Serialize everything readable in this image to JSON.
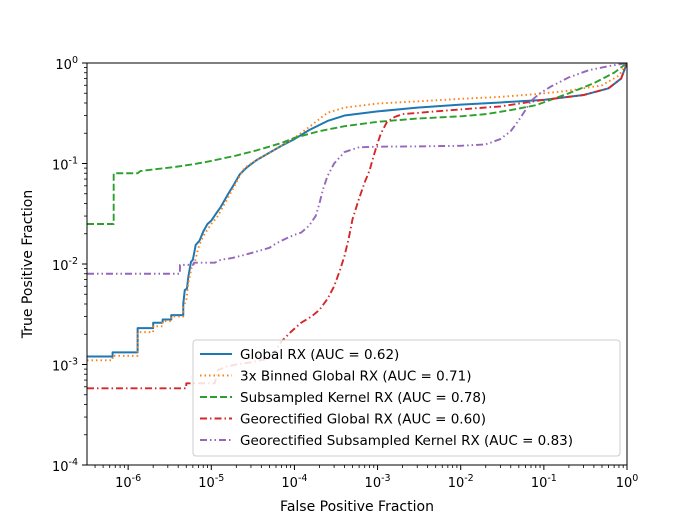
{
  "chart_data": {
    "type": "line",
    "title": "",
    "xlabel": "False Positive Fraction",
    "ylabel": "True Positive Fraction",
    "xscale": "log",
    "yscale": "log",
    "xlim": [
      3.2e-07,
      1
    ],
    "ylim": [
      0.0001,
      1
    ],
    "x_ticks": [
      {
        "exp": "-6",
        "value": 1e-06
      },
      {
        "exp": "-5",
        "value": 1e-05
      },
      {
        "exp": "-4",
        "value": 0.0001
      },
      {
        "exp": "-3",
        "value": 0.001
      },
      {
        "exp": "-2",
        "value": 0.01
      },
      {
        "exp": "-1",
        "value": 0.1
      },
      {
        "exp": "0",
        "value": 1
      }
    ],
    "y_ticks": [
      {
        "exp": "-4",
        "value": 0.0001
      },
      {
        "exp": "-3",
        "value": 0.001
      },
      {
        "exp": "-2",
        "value": 0.01
      },
      {
        "exp": "-1",
        "value": 0.1
      },
      {
        "exp": "0",
        "value": 1
      }
    ],
    "tick_base": "10",
    "legend_position": "lower-right",
    "series": [
      {
        "name": "Global RX (AUC = 0.62)",
        "color": "#1f77b4",
        "dash": "solid",
        "points": [
          [
            3.2e-07,
            0.0012
          ],
          [
            6.5e-07,
            0.0012
          ],
          [
            6.5e-07,
            0.00132
          ],
          [
            1.3e-06,
            0.00132
          ],
          [
            1.3e-06,
            0.0023
          ],
          [
            2e-06,
            0.0023
          ],
          [
            2e-06,
            0.0026
          ],
          [
            2.6e-06,
            0.0026
          ],
          [
            2.6e-06,
            0.0028
          ],
          [
            3.3e-06,
            0.0028
          ],
          [
            3.3e-06,
            0.0031
          ],
          [
            4.6e-06,
            0.0031
          ],
          [
            4.6e-06,
            0.004
          ],
          [
            4.8e-06,
            0.0055
          ],
          [
            5.1e-06,
            0.0057
          ],
          [
            5.3e-06,
            0.0075
          ],
          [
            5.7e-06,
            0.0105
          ],
          [
            6e-06,
            0.011
          ],
          [
            6.5e-06,
            0.0155
          ],
          [
            7.2e-06,
            0.017
          ],
          [
            8e-06,
            0.021
          ],
          [
            9e-06,
            0.025
          ],
          [
            1e-05,
            0.027
          ],
          [
            1.15e-05,
            0.032
          ],
          [
            1.3e-05,
            0.037
          ],
          [
            1.6e-05,
            0.05
          ],
          [
            1.9e-05,
            0.063
          ],
          [
            2.2e-05,
            0.078
          ],
          [
            2.7e-05,
            0.092
          ],
          [
            3.5e-05,
            0.108
          ],
          [
            5e-05,
            0.128
          ],
          [
            7e-05,
            0.15
          ],
          [
            0.0001,
            0.175
          ],
          [
            0.00015,
            0.215
          ],
          [
            0.00025,
            0.265
          ],
          [
            0.0004,
            0.3
          ],
          [
            0.001,
            0.33
          ],
          [
            0.003,
            0.36
          ],
          [
            0.01,
            0.385
          ],
          [
            0.03,
            0.405
          ],
          [
            0.1,
            0.43
          ],
          [
            0.3,
            0.48
          ],
          [
            0.6,
            0.56
          ],
          [
            0.85,
            0.7
          ],
          [
            1,
            1
          ]
        ]
      },
      {
        "name": "3x Binned Global RX (AUC = 0.71)",
        "color": "#ff7f0e",
        "dash": "dotted",
        "points": [
          [
            3.2e-07,
            0.0011
          ],
          [
            6.5e-07,
            0.0011
          ],
          [
            6.5e-07,
            0.00122
          ],
          [
            1.3e-06,
            0.00122
          ],
          [
            1.3e-06,
            0.0021
          ],
          [
            2e-06,
            0.0021
          ],
          [
            2e-06,
            0.0024
          ],
          [
            2.6e-06,
            0.0024
          ],
          [
            2.6e-06,
            0.0027
          ],
          [
            3.3e-06,
            0.0027
          ],
          [
            3.3e-06,
            0.003
          ],
          [
            4.6e-06,
            0.003
          ],
          [
            4.6e-06,
            0.0038
          ],
          [
            5e-06,
            0.0043
          ],
          [
            5.3e-06,
            0.0065
          ],
          [
            5.8e-06,
            0.0092
          ],
          [
            6.3e-06,
            0.0102
          ],
          [
            7e-06,
            0.0145
          ],
          [
            8e-06,
            0.019
          ],
          [
            9e-06,
            0.022
          ],
          [
            1e-05,
            0.025
          ],
          [
            1.2e-05,
            0.03
          ],
          [
            1.5e-05,
            0.042
          ],
          [
            1.8e-05,
            0.055
          ],
          [
            2.1e-05,
            0.07
          ],
          [
            2.5e-05,
            0.09
          ],
          [
            3e-05,
            0.1
          ],
          [
            4e-05,
            0.115
          ],
          [
            6e-05,
            0.14
          ],
          [
            0.0001,
            0.18
          ],
          [
            0.00015,
            0.23
          ],
          [
            0.00025,
            0.32
          ],
          [
            0.0004,
            0.36
          ],
          [
            0.001,
            0.395
          ],
          [
            0.003,
            0.415
          ],
          [
            0.01,
            0.44
          ],
          [
            0.03,
            0.46
          ],
          [
            0.08,
            0.49
          ],
          [
            0.2,
            0.53
          ],
          [
            0.5,
            0.6
          ],
          [
            0.8,
            0.75
          ],
          [
            1,
            1
          ]
        ]
      },
      {
        "name": "Subsampled Kernel RX (AUC = 0.78)",
        "color": "#2ca02c",
        "dash": "dashed",
        "points": [
          [
            3.2e-07,
            0.025
          ],
          [
            6.7e-07,
            0.025
          ],
          [
            6.7e-07,
            0.08
          ],
          [
            1.3e-06,
            0.08
          ],
          [
            1.4e-06,
            0.084
          ],
          [
            2.2e-06,
            0.088
          ],
          [
            3.5e-06,
            0.092
          ],
          [
            6e-06,
            0.098
          ],
          [
            1e-05,
            0.106
          ],
          [
            2e-05,
            0.12
          ],
          [
            3.5e-05,
            0.135
          ],
          [
            7e-05,
            0.16
          ],
          [
            0.0001,
            0.18
          ],
          [
            0.0002,
            0.21
          ],
          [
            0.0004,
            0.235
          ],
          [
            0.001,
            0.26
          ],
          [
            0.003,
            0.28
          ],
          [
            0.01,
            0.295
          ],
          [
            0.02,
            0.31
          ],
          [
            0.04,
            0.34
          ],
          [
            0.08,
            0.38
          ],
          [
            0.2,
            0.5
          ],
          [
            0.4,
            0.63
          ],
          [
            0.7,
            0.8
          ],
          [
            1,
            1
          ]
        ]
      },
      {
        "name": "Georectified Global RX (AUC = 0.60)",
        "color": "#d62728",
        "dash": "dashdot",
        "points": [
          [
            3.2e-07,
            0.00058
          ],
          [
            5e-06,
            0.00058
          ],
          [
            5e-06,
            0.00065
          ],
          [
            1.1e-05,
            0.00065
          ],
          [
            1.2e-05,
            0.00088
          ],
          [
            1.5e-05,
            0.00095
          ],
          [
            2e-05,
            0.001
          ],
          [
            3e-05,
            0.00105
          ],
          [
            5e-05,
            0.00115
          ],
          [
            6e-05,
            0.0014
          ],
          [
            7e-05,
            0.0017
          ],
          [
            9e-05,
            0.0021
          ],
          [
            0.00012,
            0.0026
          ],
          [
            0.00016,
            0.003
          ],
          [
            0.0002,
            0.0035
          ],
          [
            0.00025,
            0.0045
          ],
          [
            0.0003,
            0.006
          ],
          [
            0.00035,
            0.0085
          ],
          [
            0.0004,
            0.012
          ],
          [
            0.00045,
            0.018
          ],
          [
            0.0005,
            0.028
          ],
          [
            0.0006,
            0.045
          ],
          [
            0.0007,
            0.065
          ],
          [
            0.0008,
            0.085
          ],
          [
            0.0009,
            0.12
          ],
          [
            0.001,
            0.16
          ],
          [
            0.0011,
            0.2
          ],
          [
            0.0013,
            0.26
          ],
          [
            0.0016,
            0.29
          ],
          [
            0.002,
            0.31
          ],
          [
            0.005,
            0.33
          ],
          [
            0.01,
            0.345
          ],
          [
            0.03,
            0.37
          ],
          [
            0.1,
            0.43
          ],
          [
            0.3,
            0.48
          ],
          [
            0.6,
            0.56
          ],
          [
            0.85,
            0.7
          ],
          [
            1,
            1
          ]
        ]
      },
      {
        "name": "Georectified Subsampled Kernel RX (AUC = 0.83)",
        "color": "#9467bd",
        "dash": "dashdotdot",
        "points": [
          [
            3.2e-07,
            0.008
          ],
          [
            4.2e-06,
            0.008
          ],
          [
            4.2e-06,
            0.0098
          ],
          [
            6e-06,
            0.0098
          ],
          [
            6.2e-06,
            0.0103
          ],
          [
            1.1e-05,
            0.0103
          ],
          [
            1.3e-05,
            0.011
          ],
          [
            1.8e-05,
            0.0115
          ],
          [
            2.5e-05,
            0.0123
          ],
          [
            3.5e-05,
            0.0133
          ],
          [
            5e-05,
            0.0145
          ],
          [
            6e-05,
            0.016
          ],
          [
            8e-05,
            0.018
          ],
          [
            0.0001,
            0.0195
          ],
          [
            0.00012,
            0.0205
          ],
          [
            0.00015,
            0.024
          ],
          [
            0.00018,
            0.03
          ],
          [
            0.0002,
            0.04
          ],
          [
            0.00022,
            0.055
          ],
          [
            0.00025,
            0.075
          ],
          [
            0.0003,
            0.1
          ],
          [
            0.0004,
            0.13
          ],
          [
            0.0006,
            0.145
          ],
          [
            0.001,
            0.147
          ],
          [
            0.003,
            0.148
          ],
          [
            0.01,
            0.15
          ],
          [
            0.02,
            0.155
          ],
          [
            0.03,
            0.175
          ],
          [
            0.04,
            0.21
          ],
          [
            0.05,
            0.27
          ],
          [
            0.06,
            0.34
          ],
          [
            0.07,
            0.42
          ],
          [
            0.09,
            0.5
          ],
          [
            0.12,
            0.58
          ],
          [
            0.2,
            0.72
          ],
          [
            0.35,
            0.85
          ],
          [
            0.6,
            0.93
          ],
          [
            1,
            1
          ]
        ]
      }
    ]
  }
}
